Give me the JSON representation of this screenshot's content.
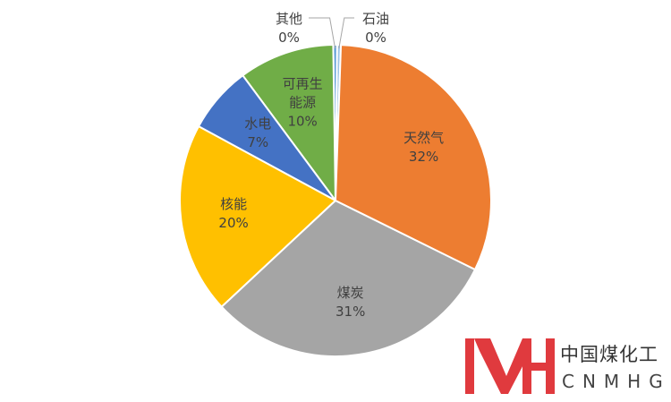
{
  "chart_data": {
    "type": "pie",
    "categories": [
      "天然气",
      "煤炭",
      "核能",
      "水电",
      "可再生能源",
      "其他",
      "石油"
    ],
    "values": [
      32,
      31,
      20,
      7,
      10,
      0.4,
      0.4
    ],
    "value_labels": [
      "32%",
      "31%",
      "20%",
      "7%",
      "10%",
      "0%",
      "0%"
    ],
    "colors": [
      "#ED7D31",
      "#A5A5A5",
      "#FFC000",
      "#4472C4",
      "#70AD47",
      "#5B9BD5",
      "#9DC3E6"
    ]
  },
  "logo": {
    "cn": "中国煤化工",
    "en": "CNMHG"
  }
}
